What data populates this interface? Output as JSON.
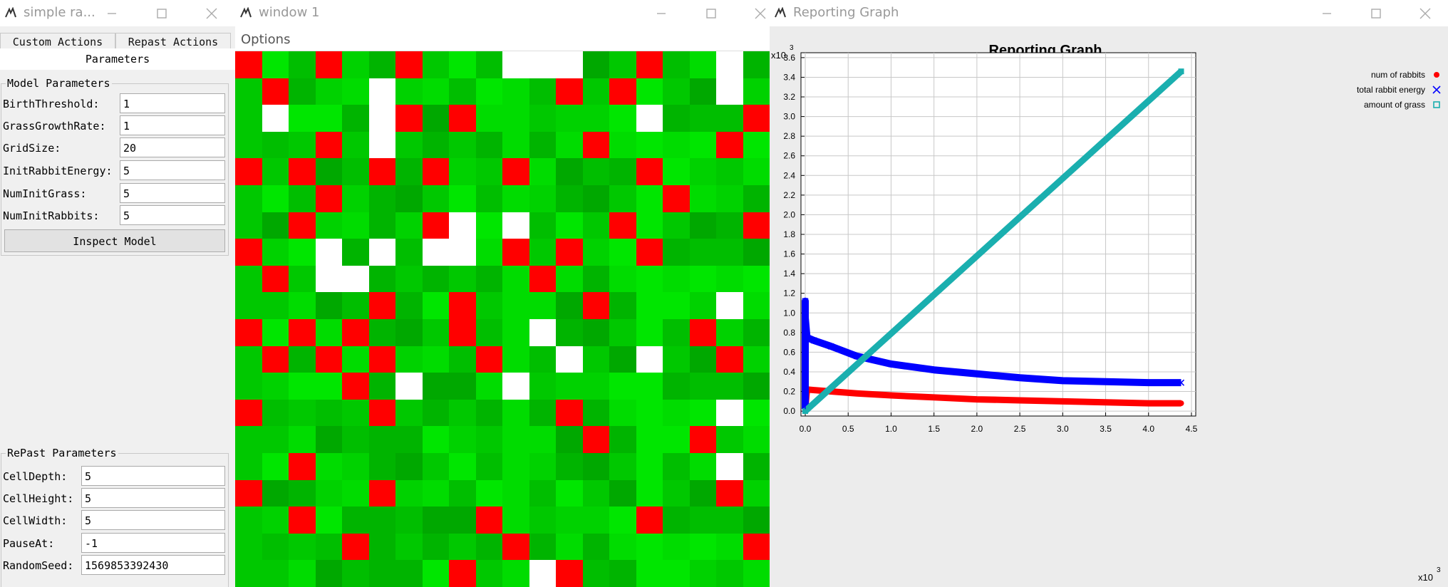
{
  "left_window": {
    "title": "simple ra...",
    "tabs": [
      "Custom Actions",
      "Repast Actions",
      "Parameters"
    ],
    "model_parameters": {
      "title": "Model Parameters",
      "rows": [
        {
          "label": "BirthThreshold:",
          "value": "1"
        },
        {
          "label": "GrassGrowthRate:",
          "value": "1"
        },
        {
          "label": "GridSize:",
          "value": "20"
        },
        {
          "label": "InitRabbitEnergy:",
          "value": "5"
        },
        {
          "label": "NumInitGrass:",
          "value": "5"
        },
        {
          "label": "NumInitRabbits:",
          "value": "5"
        }
      ],
      "inspect_button": "Inspect Model"
    },
    "repast_parameters": {
      "title": "RePast Parameters",
      "rows": [
        {
          "label": "CellDepth:",
          "value": "5"
        },
        {
          "label": "CellHeight:",
          "value": "5"
        },
        {
          "label": "CellWidth:",
          "value": "5"
        },
        {
          "label": "PauseAt:",
          "value": "-1"
        },
        {
          "label": "RandomSeed:",
          "value": "1569853392430"
        }
      ]
    }
  },
  "grid_window": {
    "title": "window 1",
    "menu": [
      "Options"
    ],
    "grid_size": 20,
    "cells": [
      "RGGRGGRGGG.. GGRGG.G",
      "GRGGG.GGGGGGRGRGGG.G",
      "G.GGG.RGRGGGGGG.GGGR",
      "GGGRG.GGGGGGGRGGGGRG",
      "RGRGGRGRGGRGGGGRGGGG",
      "GGGRGGGGGGGGGGGGRGGG",
      "GGRGGGGR.G.GGGRGGGGR",
      "RGG.G.G..GRGRGGRGGGG",
      "GRG..GGGGGGRGGGGGGGG",
      "GGGGGRGGRGGGGRGGGG.G",
      "RGRGRGGGRGG.GGGGGRGG",
      "GRGRGRGGGRGG.GG.GGRG",
      "GGGGRG.GGG.GGGGGGGGG",
      "RGGGGRGGGGGGRGGGGG.G",
      "GGGGGGGGGGGGGRGGGRGG",
      "GGRGGGGGGGGGGGGGGG.G",
      "RGGGGRGGGGGGGGGGGGRG",
      "GGRGGGGGGRGGGGGRGGGG",
      "GGGGRGGGGGRGGGGGGGGR",
      "GGGGGGGGRGG.RGGGGGGG"
    ],
    "cell_colors": {
      "R": "#ff0000",
      "G": "#00c800",
      ".": "#ffffff",
      " ": "#ffffff"
    }
  },
  "graph_window": {
    "title": "Reporting Graph",
    "x_multiplier": "x10",
    "y_multiplier": "x10",
    "exponent": "3"
  },
  "chart_data": {
    "type": "scatter",
    "title": "Reporting Graph",
    "xlabel": "",
    "ylabel": "",
    "xlim": [
      -0.05,
      4.55
    ],
    "ylim": [
      -0.05,
      3.65
    ],
    "x_ticks": [
      "0.0",
      "0.5",
      "1.0",
      "1.5",
      "2.0",
      "2.5",
      "3.0",
      "3.5",
      "4.0",
      "4.5"
    ],
    "y_ticks": [
      "0.0",
      "0.2",
      "0.4",
      "0.6",
      "0.8",
      "1.0",
      "1.2",
      "1.4",
      "1.6",
      "1.8",
      "2.0",
      "2.2",
      "2.4",
      "2.6",
      "2.8",
      "3.0",
      "3.2",
      "3.4",
      "3.6"
    ],
    "grid": true,
    "legend_position": "top-right",
    "series": [
      {
        "name": "num of rabbits",
        "marker": "circle",
        "color": "#ff0000",
        "x": [
          0.0,
          0.02,
          0.3,
          0.6,
          1.0,
          1.5,
          2.0,
          2.5,
          3.0,
          3.5,
          4.0,
          4.38
        ],
        "y": [
          0.02,
          0.22,
          0.2,
          0.18,
          0.16,
          0.14,
          0.12,
          0.11,
          0.1,
          0.09,
          0.08,
          0.08
        ]
      },
      {
        "name": "total rabbit energy",
        "marker": "x",
        "color": "#0000ff",
        "x": [
          0.0,
          0.0,
          0.0,
          0.02,
          0.1,
          0.3,
          0.6,
          1.0,
          1.5,
          2.0,
          2.5,
          3.0,
          3.5,
          4.0,
          4.38
        ],
        "y": [
          0.02,
          1.12,
          0.95,
          0.75,
          0.72,
          0.66,
          0.56,
          0.48,
          0.42,
          0.38,
          0.34,
          0.31,
          0.3,
          0.29,
          0.29
        ]
      },
      {
        "name": "amount of grass",
        "marker": "square",
        "color": "#1aafaf",
        "x": [
          0.0,
          4.38
        ],
        "y": [
          0.0,
          3.46
        ]
      }
    ]
  }
}
